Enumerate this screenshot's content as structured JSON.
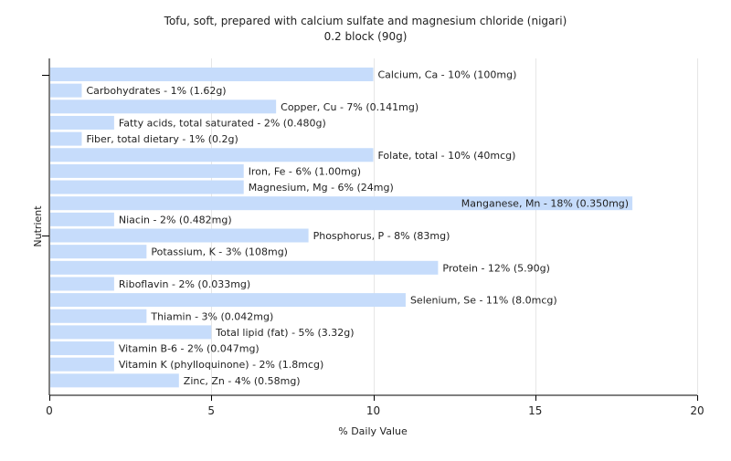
{
  "chart_data": {
    "type": "bar",
    "orientation": "horizontal",
    "title": "Tofu, soft, prepared with calcium sulfate and magnesium chloride (nigari)",
    "subtitle": "0.2 block (90g)",
    "xlabel": "% Daily Value",
    "ylabel": "Nutrient",
    "xlim": [
      0,
      20
    ],
    "xticks": [
      0,
      5,
      10,
      15,
      20
    ],
    "grid": "vertical",
    "bar_color": "#c6dcfb",
    "categories": [
      "Calcium, Ca - 10% (100mg)",
      "Carbohydrates - 1% (1.62g)",
      "Copper, Cu - 7% (0.141mg)",
      "Fatty acids, total saturated - 2% (0.480g)",
      "Fiber, total dietary - 1% (0.2g)",
      "Folate, total - 10% (40mcg)",
      "Iron, Fe - 6% (1.00mg)",
      "Magnesium, Mg - 6% (24mg)",
      "Manganese, Mn - 18% (0.350mg)",
      "Niacin - 2% (0.482mg)",
      "Phosphorus, P - 8% (83mg)",
      "Potassium, K - 3% (108mg)",
      "Protein - 12% (5.90g)",
      "Riboflavin - 2% (0.033mg)",
      "Selenium, Se - 11% (8.0mcg)",
      "Thiamin - 3% (0.042mg)",
      "Total lipid (fat) - 5% (3.32g)",
      "Vitamin B-6 - 2% (0.047mg)",
      "Vitamin K (phylloquinone) - 2% (1.8mcg)",
      "Zinc, Zn - 4% (0.58mg)"
    ],
    "values": [
      10,
      1,
      7,
      2,
      1,
      10,
      6,
      6,
      18,
      2,
      8,
      3,
      12,
      2,
      11,
      3,
      5,
      2,
      2,
      4
    ]
  }
}
